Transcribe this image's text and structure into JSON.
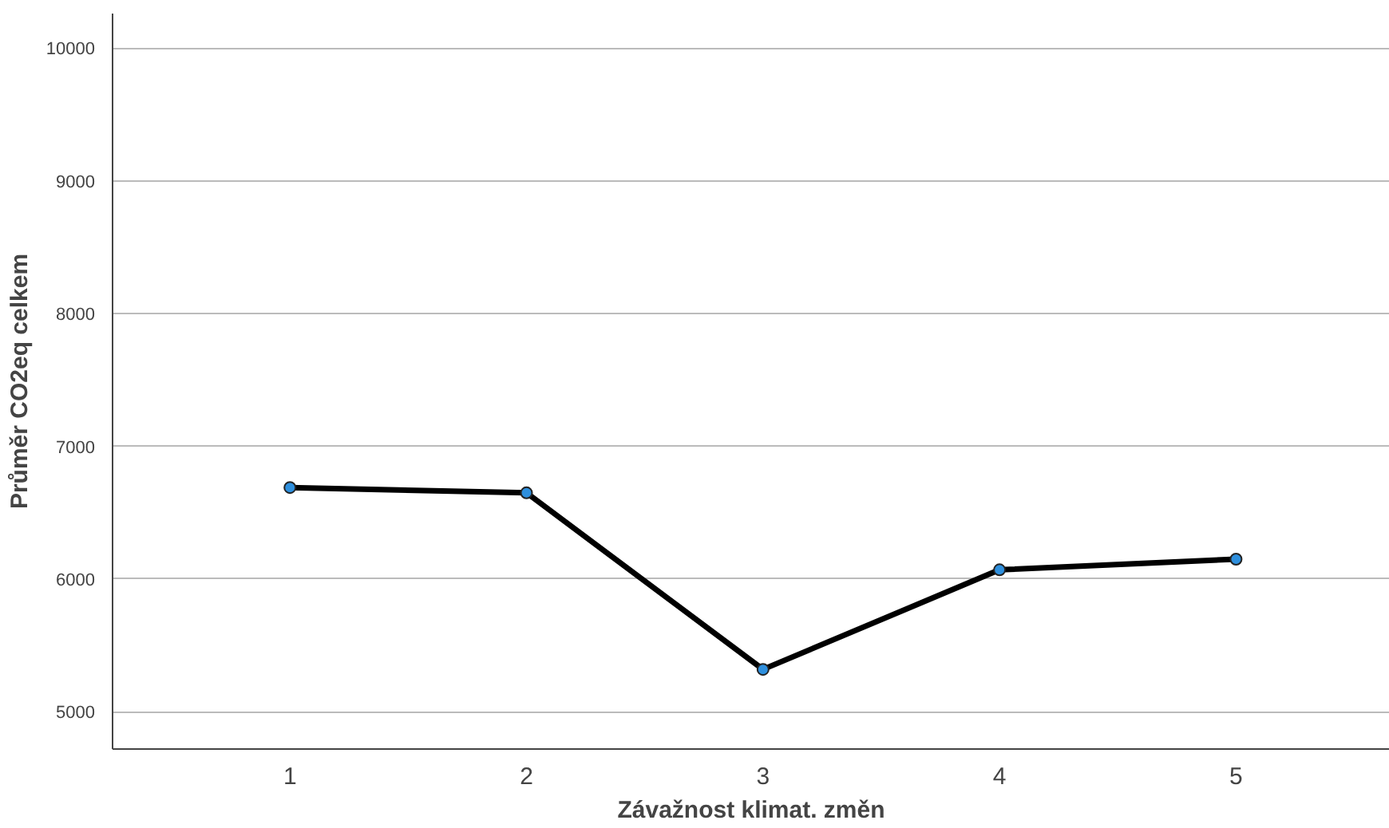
{
  "chart_data": {
    "type": "line",
    "xlabel": "Závažnost klimat. změn",
    "ylabel": "Průměr CO2eq celkem",
    "categories": [
      "1",
      "2",
      "3",
      "4",
      "5"
    ],
    "series": [
      {
        "color": "#000000",
        "colors": [
          "#2e8fdd",
          "#2e8fdd",
          "#2e8fdd",
          "#2e8fdd",
          "#2e8fdd"
        ],
        "values": [
          6690,
          6650,
          5320,
          6070,
          6150
        ]
      }
    ],
    "ylim": [
      4720,
      10260
    ],
    "yticks": [
      5000,
      6000,
      7000,
      8000,
      9000,
      10000
    ],
    "grid": "y",
    "marker": "circle",
    "line_style": "solid"
  }
}
